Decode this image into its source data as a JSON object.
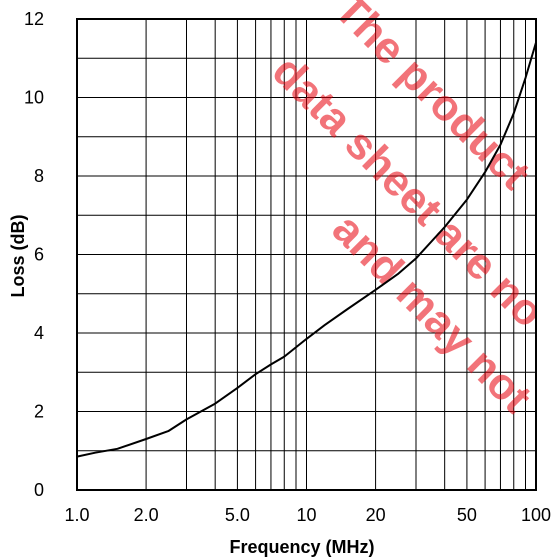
{
  "chart_data": {
    "type": "line",
    "xlabel": "Frequency (MHz)",
    "ylabel": "Loss (dB)",
    "x_scale": "log",
    "xlim": [
      1,
      100
    ],
    "ylim": [
      0,
      12
    ],
    "grid": true,
    "x_ticks": [
      1,
      2,
      5,
      10,
      20,
      50,
      100
    ],
    "x_tick_labels": [
      "1.0",
      "2.0",
      "5.0",
      "10",
      "20",
      "50",
      "100"
    ],
    "y_ticks": [
      0,
      2,
      4,
      6,
      8,
      10,
      12
    ],
    "y_tick_labels": [
      "0",
      "2",
      "4",
      "6",
      "8",
      "10",
      "12"
    ],
    "series": [
      {
        "color": "#000000",
        "x": [
          1.0,
          1.2,
          1.5,
          2.0,
          2.5,
          3.0,
          4.0,
          5.0,
          6.0,
          7.0,
          8.0,
          10,
          12,
          15,
          20,
          25,
          30,
          40,
          50,
          60,
          70,
          80,
          90,
          100
        ],
        "y": [
          0.85,
          0.95,
          1.05,
          1.3,
          1.5,
          1.8,
          2.2,
          2.6,
          2.95,
          3.2,
          3.4,
          3.85,
          4.2,
          4.6,
          5.1,
          5.5,
          5.9,
          6.7,
          7.4,
          8.1,
          8.8,
          9.6,
          10.5,
          11.4
        ]
      }
    ]
  },
  "watermark": {
    "lines": [
      "The product",
      "data sheet are no",
      "and may not"
    ]
  }
}
